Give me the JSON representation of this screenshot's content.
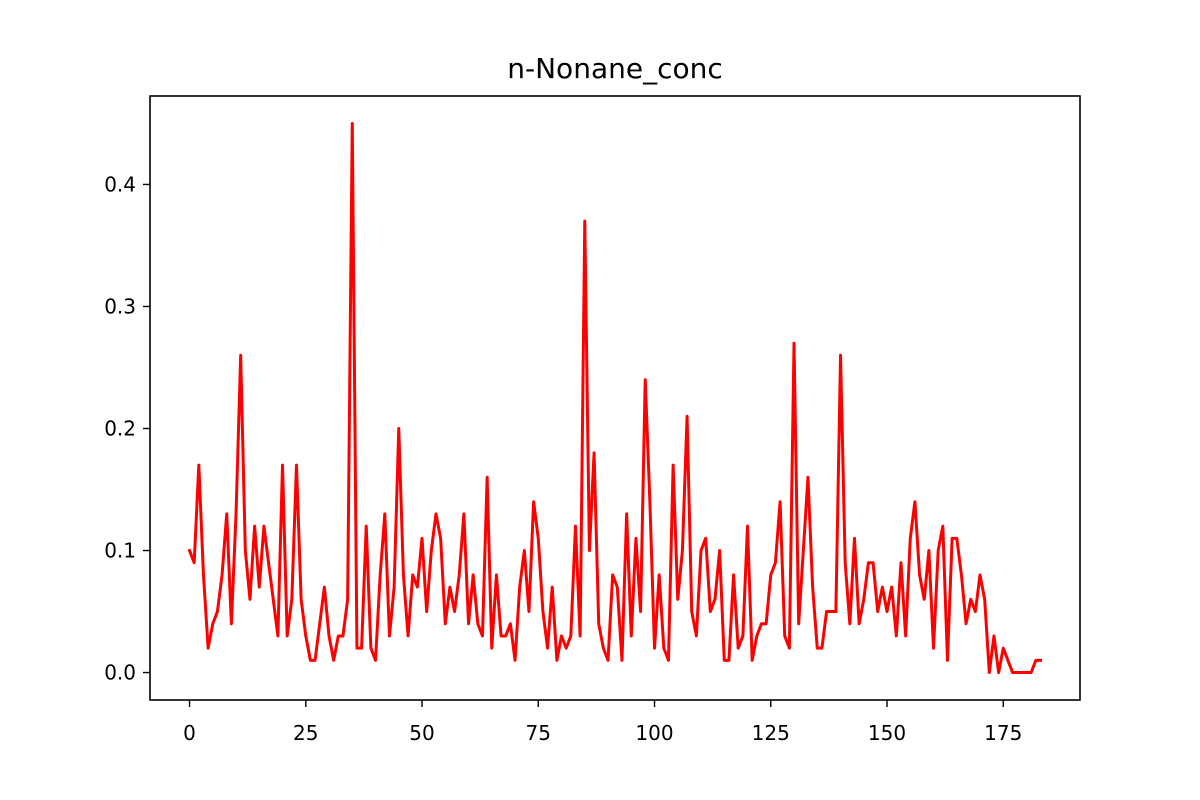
{
  "chart_data": {
    "type": "line",
    "title": "n-Nonane_conc",
    "xlabel": "",
    "ylabel": "",
    "xlim": [
      -8.5,
      191.5
    ],
    "ylim": [
      -0.0225,
      0.4725
    ],
    "xticks": [
      0,
      25,
      50,
      75,
      100,
      125,
      150,
      175
    ],
    "yticks": [
      0.0,
      0.1,
      0.2,
      0.3,
      0.4
    ],
    "ytick_labels": [
      "0.0",
      "0.1",
      "0.2",
      "0.3",
      "0.4"
    ],
    "grid": false,
    "series": [
      {
        "color": "#ff0000",
        "values": [
          0.1,
          0.09,
          0.17,
          0.08,
          0.02,
          0.04,
          0.05,
          0.08,
          0.13,
          0.04,
          0.13,
          0.26,
          0.1,
          0.06,
          0.12,
          0.07,
          0.12,
          0.09,
          0.06,
          0.03,
          0.17,
          0.03,
          0.06,
          0.17,
          0.06,
          0.03,
          0.01,
          0.01,
          0.04,
          0.07,
          0.03,
          0.01,
          0.03,
          0.03,
          0.06,
          0.45,
          0.02,
          0.02,
          0.12,
          0.02,
          0.01,
          0.08,
          0.13,
          0.03,
          0.07,
          0.2,
          0.08,
          0.03,
          0.08,
          0.07,
          0.11,
          0.05,
          0.1,
          0.13,
          0.11,
          0.04,
          0.07,
          0.05,
          0.08,
          0.13,
          0.04,
          0.08,
          0.04,
          0.03,
          0.16,
          0.02,
          0.08,
          0.03,
          0.03,
          0.04,
          0.01,
          0.07,
          0.1,
          0.05,
          0.14,
          0.11,
          0.05,
          0.02,
          0.07,
          0.01,
          0.03,
          0.02,
          0.03,
          0.12,
          0.03,
          0.37,
          0.1,
          0.18,
          0.04,
          0.02,
          0.01,
          0.08,
          0.07,
          0.01,
          0.13,
          0.03,
          0.11,
          0.05,
          0.24,
          0.14,
          0.02,
          0.08,
          0.02,
          0.01,
          0.17,
          0.06,
          0.1,
          0.21,
          0.05,
          0.03,
          0.1,
          0.11,
          0.05,
          0.06,
          0.1,
          0.01,
          0.01,
          0.08,
          0.02,
          0.03,
          0.12,
          0.01,
          0.03,
          0.04,
          0.04,
          0.08,
          0.09,
          0.14,
          0.03,
          0.02,
          0.27,
          0.04,
          0.1,
          0.16,
          0.07,
          0.02,
          0.02,
          0.05,
          0.05,
          0.05,
          0.26,
          0.09,
          0.04,
          0.11,
          0.04,
          0.06,
          0.09,
          0.09,
          0.05,
          0.07,
          0.05,
          0.07,
          0.03,
          0.09,
          0.03,
          0.11,
          0.14,
          0.08,
          0.06,
          0.1,
          0.02,
          0.1,
          0.12,
          0.01,
          0.11,
          0.11,
          0.08,
          0.04,
          0.06,
          0.05,
          0.08,
          0.06,
          0.0,
          0.03,
          0.0,
          0.02,
          0.01,
          0.0,
          0.0,
          0.0,
          0.0,
          0.0,
          0.01,
          0.01
        ]
      }
    ]
  }
}
